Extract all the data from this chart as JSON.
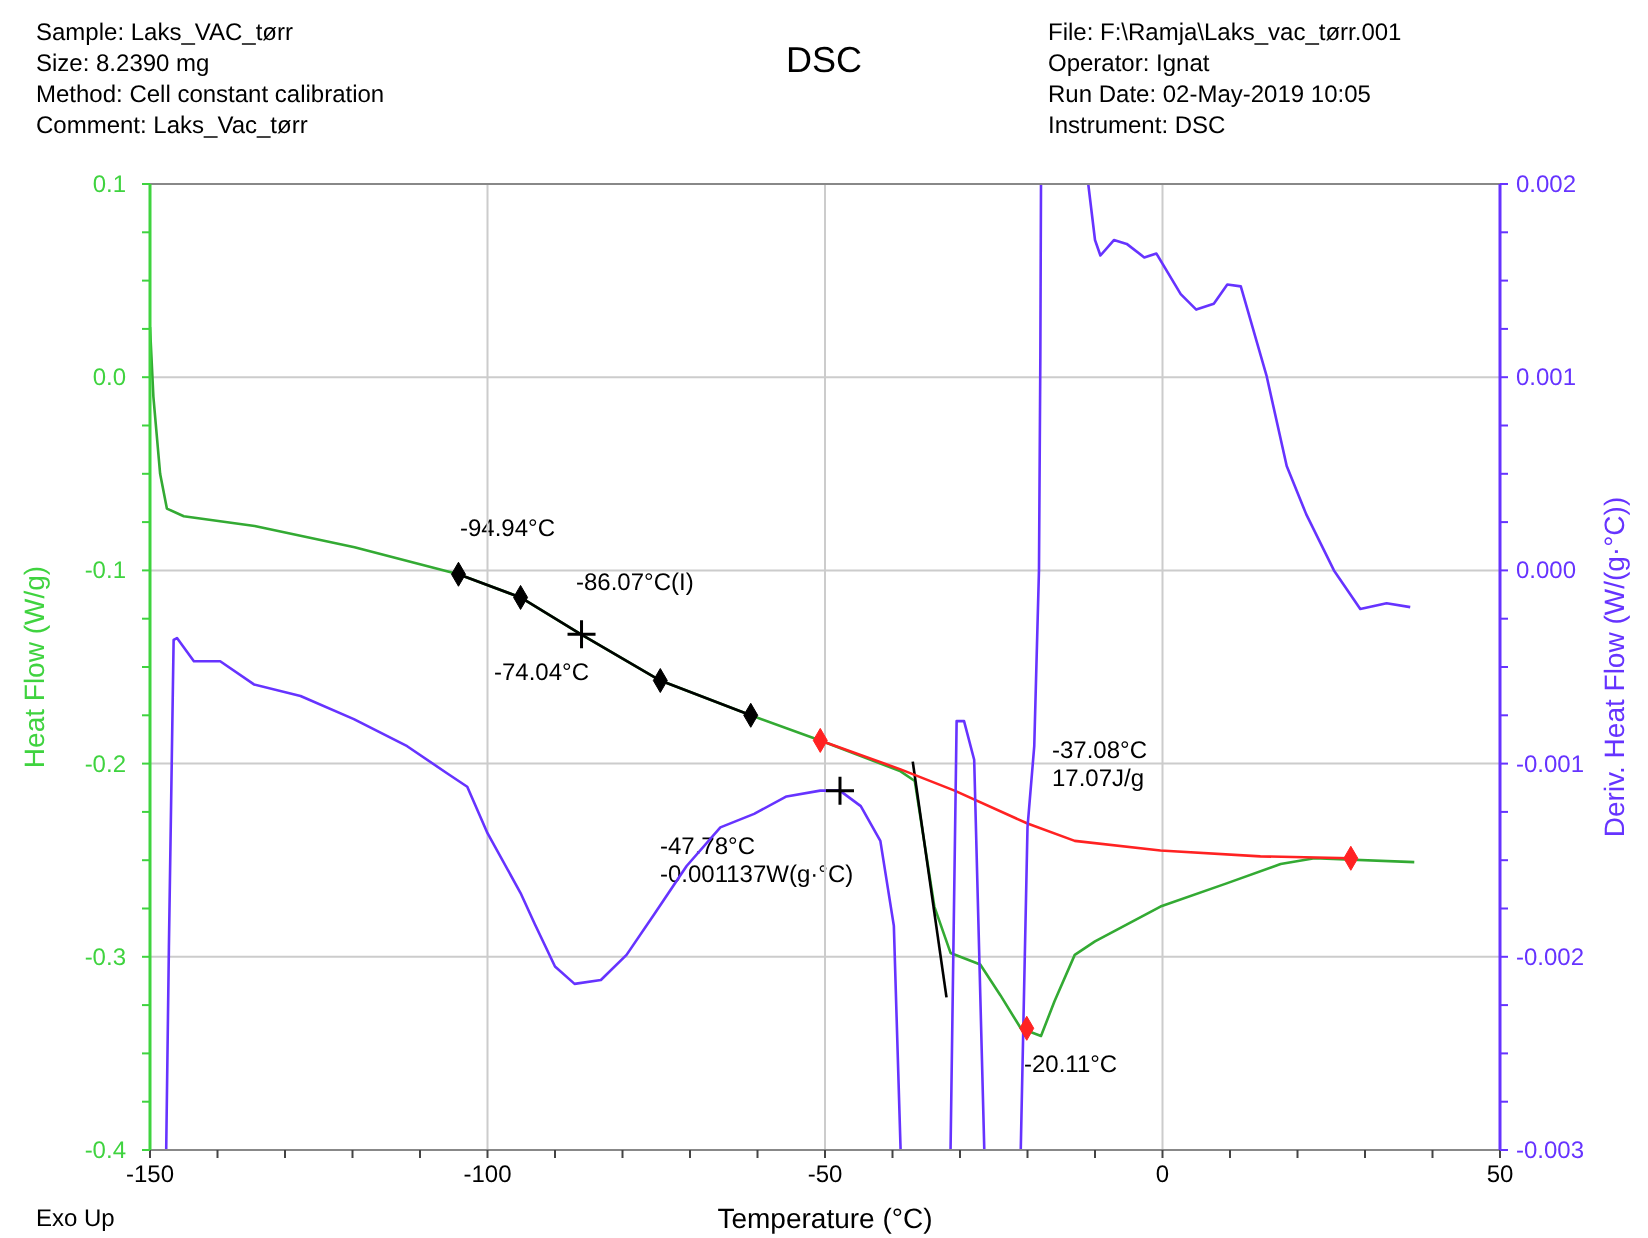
{
  "chart_data": {
    "type": "line",
    "title": "DSC",
    "xlabel": "Temperature (°C)",
    "ylabel": "Heat Flow (W/g)",
    "y2label": "Deriv. Heat Flow (W/(g·°C))",
    "xlim": [
      -150,
      50
    ],
    "xticks": [
      -150,
      {
        "value": -140,
        "label": null
      },
      {
        "value": -130,
        "label": null
      },
      {
        "value": -120,
        "label": null
      },
      {
        "value": -110,
        "label": null
      },
      -100,
      {
        "value": -90,
        "label": null
      },
      {
        "value": -80,
        "label": null
      },
      {
        "value": -70,
        "label": null
      },
      {
        "value": -60,
        "label": null
      },
      -50,
      {
        "value": -40,
        "label": null
      },
      {
        "value": -30,
        "label": null
      },
      {
        "value": -20,
        "label": null
      },
      {
        "value": -10,
        "label": null
      },
      0,
      {
        "value": 10,
        "label": null
      },
      {
        "value": 20,
        "label": null
      },
      {
        "value": 30,
        "label": null
      },
      {
        "value": 40,
        "label": null
      },
      50
    ],
    "ylim": [
      -0.4,
      0.1
    ],
    "yticks": [
      -0.4,
      {
        "value": -0.375,
        "label": null
      },
      {
        "value": -0.35,
        "label": null
      },
      {
        "value": -0.325,
        "label": null
      },
      -0.3,
      {
        "value": -0.275,
        "label": null
      },
      {
        "value": -0.25,
        "label": null
      },
      {
        "value": -0.225,
        "label": null
      },
      -0.2,
      {
        "value": -0.175,
        "label": null
      },
      {
        "value": -0.15,
        "label": null
      },
      {
        "value": -0.125,
        "label": null
      },
      -0.1,
      {
        "value": -0.075,
        "label": null
      },
      {
        "value": -0.05,
        "label": null
      },
      {
        "value": -0.025,
        "label": null
      },
      {
        "value": 0,
        "label": "0.0"
      },
      {
        "value": 0.025,
        "label": null
      },
      {
        "value": 0.05,
        "label": null
      },
      {
        "value": 0.075,
        "label": null
      },
      0.1
    ],
    "y2lim": [
      -0.003,
      0.002
    ],
    "y2ticks": [
      -0.003,
      {
        "value": -0.00275,
        "label": null
      },
      {
        "value": -0.0025,
        "label": null
      },
      {
        "value": -0.00225,
        "label": null
      },
      -0.002,
      {
        "value": -0.00175,
        "label": null
      },
      {
        "value": -0.0015,
        "label": null
      },
      {
        "value": -0.00125,
        "label": null
      },
      -0.001,
      {
        "value": -0.00075,
        "label": null
      },
      {
        "value": -0.0005,
        "label": null
      },
      {
        "value": -0.00025,
        "label": null
      },
      {
        "value": 0,
        "label": "0.000"
      },
      {
        "value": 0.00025,
        "label": null
      },
      {
        "value": 0.0005,
        "label": null
      },
      {
        "value": 0.00075,
        "label": null
      },
      0.001,
      {
        "value": 0.00125,
        "label": null
      },
      {
        "value": 0.0015,
        "label": null
      },
      {
        "value": 0.00175,
        "label": null
      },
      0.002
    ],
    "grid": true,
    "series": [
      {
        "type": "line",
        "color": "#33aa33",
        "x": [
          -150,
          -149.5,
          -148.5,
          -147.5,
          -145,
          -134.5,
          -119.7,
          -104.3,
          -95.1,
          -86.2,
          -74.4,
          -61,
          -50.7,
          -38.8,
          -36.7,
          -33.8,
          -31.4,
          -27,
          -24,
          -21,
          -18,
          -16,
          -13,
          -10,
          -0.3,
          9.5,
          17.5,
          22.5,
          37.3
        ],
        "values": [
          0.026,
          -0.01,
          -0.05,
          -0.068,
          -0.072,
          -0.077,
          -0.088,
          -0.102,
          -0.114,
          -0.133,
          -0.157,
          -0.175,
          -0.188,
          -0.204,
          -0.209,
          -0.274,
          -0.298,
          -0.304,
          -0.32,
          -0.337,
          -0.341,
          -0.323,
          -0.299,
          -0.292,
          -0.274,
          -0.262,
          -0.252,
          -0.249,
          -0.251
        ]
      },
      {
        "type": "line",
        "color": "#000000",
        "x": [
          -104.3,
          -95.1,
          -86.2,
          -74.4,
          -61
        ],
        "values": [
          -0.102,
          -0.114,
          -0.133,
          -0.157,
          -0.175
        ]
      },
      {
        "type": "line",
        "color": "#000000",
        "x": [
          -37,
          -32
        ],
        "values": [
          -0.199,
          -0.321
        ]
      },
      {
        "type": "line",
        "color": "#ff2222",
        "x": [
          -50.7,
          -38.8,
          -30.8,
          -20,
          -13,
          -0.3,
          14.5,
          27.9
        ],
        "values": [
          -0.188,
          -0.203,
          -0.214,
          -0.231,
          -0.24,
          -0.245,
          -0.248,
          -0.249
        ]
      },
      {
        "type": "line",
        "color": "#6633ff",
        "axis": "y2",
        "x": [
          -147.6,
          -147.2,
          -146.5,
          -146,
          -143.5,
          -139.6,
          -134.6,
          -127.7,
          -119.8,
          -111.9,
          -106,
          -103,
          -100,
          -95.1,
          -93,
          -90,
          -87.1,
          -83.2,
          -79.4,
          -75.3,
          -70.5,
          -65.5,
          -60.5,
          -55.7,
          -50.7,
          -47.8,
          -44.7,
          -41.8,
          -39.8,
          -38.8,
          -35,
          -31.4,
          -30.5,
          -29.4,
          -27.9,
          -26.4,
          -24,
          -21,
          -20,
          -19,
          -18.3,
          -18.1,
          -18,
          -14,
          -11,
          -10,
          -9.2,
          -7.2,
          -5.3,
          -2.7,
          -0.9,
          2.7,
          5,
          7.6,
          9.6,
          11.6,
          15.4,
          18.4,
          21.3,
          25.4,
          29.3,
          33.2,
          36.7
        ],
        "values": [
          -0.003,
          -0.00195,
          -0.00036,
          -0.00035,
          -0.00047,
          -0.00047,
          -0.00059,
          -0.00065,
          -0.00077,
          -0.00091,
          -0.00105,
          -0.00112,
          -0.00136,
          -0.00167,
          -0.00183,
          -0.00205,
          -0.00214,
          -0.00212,
          -0.00199,
          -0.00178,
          -0.00153,
          -0.00133,
          -0.00126,
          -0.00117,
          -0.00114,
          -0.00114,
          -0.00122,
          -0.0014,
          -0.00184,
          -0.003,
          null,
          -0.003,
          -0.00078,
          -0.00078,
          -0.00098,
          -0.003,
          null,
          -0.003,
          -0.00133,
          -0.00091,
          0,
          0.00109,
          0.002,
          null,
          0.002,
          0.00171,
          0.00163,
          0.00171,
          0.00169,
          0.00162,
          0.00164,
          0.00143,
          0.00135,
          0.00138,
          0.00148,
          0.00147,
          0.00101,
          0.00054,
          0.00029,
          0,
          -0.0002,
          -0.00017,
          -0.00019
        ]
      },
      {
        "type": "scatter",
        "marker": "diamond",
        "color": "#000000",
        "x": [
          -104.3,
          -95.1,
          -74.4,
          -61
        ],
        "values": [
          -0.102,
          -0.114,
          -0.157,
          -0.175
        ]
      },
      {
        "type": "scatter",
        "marker": "diamond",
        "color": "#ff2222",
        "x": [
          -50.7,
          -20.11,
          27.9
        ],
        "values": [
          -0.188,
          -0.337,
          -0.249
        ]
      },
      {
        "type": "scatter",
        "marker": "cross",
        "color": "#000000",
        "x": [
          -86.07
        ],
        "values": [
          -0.133
        ]
      },
      {
        "type": "scatter",
        "marker": "cross",
        "color": "#000000",
        "axis": "y2",
        "x": [
          -47.78
        ],
        "values": [
          -0.00114
        ]
      }
    ],
    "annotations": [
      "Sample: Laks_VAC_tørr\nSize:  8.2390 mg\nMethod: Cell constant calibration\nComment: Laks_Vac_tørr",
      "File: F:\\Ramja\\Laks_vac_tørr.001\nOperator: Ignat\nRun Date: 02-May-2019 10:05\nInstrument: DSC",
      "Exo Up",
      "-94.94°C",
      "-86.07°C(I)",
      "-74.04°C",
      "-47.78°C\n-0.001137W(g·°C)",
      "-37.08°C\n17.07J/g",
      "-20.11°C"
    ]
  }
}
